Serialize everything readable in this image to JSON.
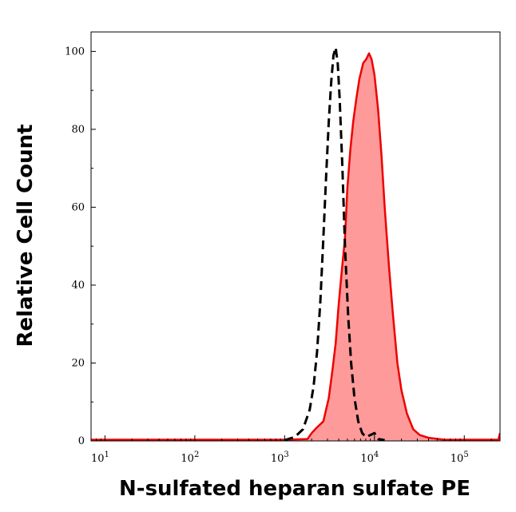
{
  "chart_data": {
    "type": "area",
    "xlabel": "N-sulfated heparan sulfate PE",
    "ylabel": "Relative Cell Count",
    "xscale": "log",
    "xlim": [
      7,
      250000
    ],
    "ylim": [
      0,
      105
    ],
    "x_ticks": [
      {
        "value": 10,
        "base": "10",
        "exp": "1"
      },
      {
        "value": 100,
        "base": "10",
        "exp": "2"
      },
      {
        "value": 1000,
        "base": "10",
        "exp": "3"
      },
      {
        "value": 10000,
        "base": "10",
        "exp": "4"
      },
      {
        "value": 100000,
        "base": "10",
        "exp": "5"
      }
    ],
    "y_ticks": [
      0,
      20,
      40,
      60,
      80,
      100
    ],
    "grid": false,
    "series": [
      {
        "style": "filled-solid",
        "line_color": "#ee0000",
        "fill_color": "#ff9a9a",
        "points": [
          [
            7,
            0.3
          ],
          [
            1000,
            0.3
          ],
          [
            1800,
            0.5
          ],
          [
            2000,
            2
          ],
          [
            2300,
            3.5
          ],
          [
            2700,
            5
          ],
          [
            3100,
            11
          ],
          [
            3400,
            18
          ],
          [
            3700,
            25
          ],
          [
            4000,
            35
          ],
          [
            4300,
            43
          ],
          [
            4700,
            52
          ],
          [
            5000,
            65
          ],
          [
            5400,
            75
          ],
          [
            5800,
            82
          ],
          [
            6300,
            88
          ],
          [
            6800,
            93
          ],
          [
            7500,
            97
          ],
          [
            8100,
            98
          ],
          [
            8700,
            99.5
          ],
          [
            9300,
            98
          ],
          [
            10000,
            94
          ],
          [
            11000,
            85
          ],
          [
            12000,
            73
          ],
          [
            13000,
            60
          ],
          [
            14500,
            45
          ],
          [
            16000,
            33
          ],
          [
            18000,
            20
          ],
          [
            20000,
            13
          ],
          [
            23000,
            7
          ],
          [
            27000,
            3
          ],
          [
            32000,
            1.5
          ],
          [
            40000,
            0.8
          ],
          [
            60000,
            0.3
          ],
          [
            240000,
            0.3
          ],
          [
            250000,
            2
          ]
        ]
      },
      {
        "style": "dashed",
        "line_color": "#000000",
        "points": [
          [
            1000,
            0.2
          ],
          [
            1300,
            1
          ],
          [
            1600,
            3
          ],
          [
            1900,
            8
          ],
          [
            2100,
            14
          ],
          [
            2300,
            23
          ],
          [
            2500,
            36
          ],
          [
            2700,
            52
          ],
          [
            2900,
            68
          ],
          [
            3100,
            82
          ],
          [
            3300,
            92
          ],
          [
            3500,
            99
          ],
          [
            3700,
            101
          ],
          [
            3900,
            97
          ],
          [
            4100,
            88
          ],
          [
            4400,
            70
          ],
          [
            4700,
            50
          ],
          [
            5100,
            32
          ],
          [
            5500,
            20
          ],
          [
            6000,
            11
          ],
          [
            6600,
            5
          ],
          [
            7300,
            2
          ],
          [
            8000,
            1
          ],
          [
            9000,
            1.5
          ],
          [
            10000,
            2
          ],
          [
            11000,
            0.5
          ],
          [
            13000,
            0.2
          ]
        ]
      }
    ]
  }
}
